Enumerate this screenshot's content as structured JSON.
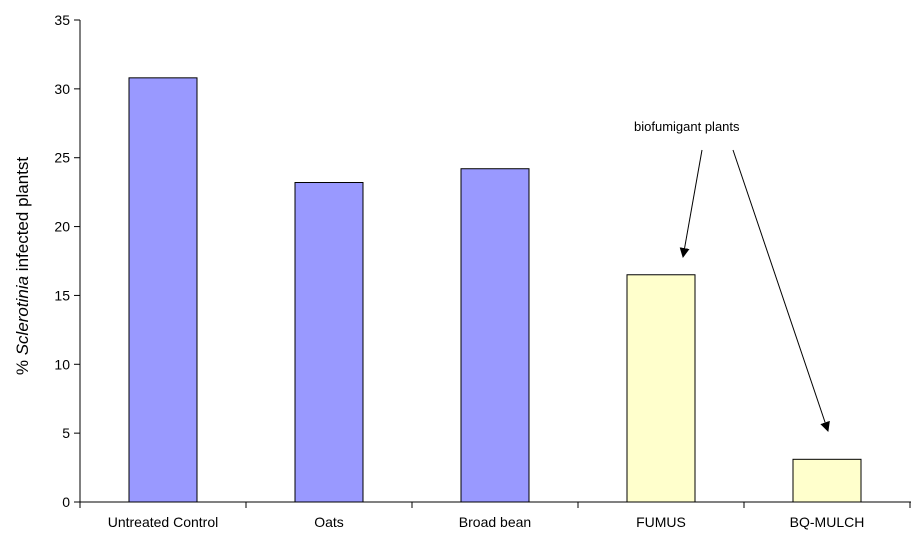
{
  "chart_data": {
    "type": "bar",
    "title": "",
    "xlabel": "",
    "ylabel": {
      "prefix": "% ",
      "italic": "Sclerotinia",
      "suffix": " infected plantst"
    },
    "categories": [
      "Untreated Control",
      "Oats",
      "Broad bean",
      "FUMUS",
      "BQ-MULCH"
    ],
    "values": [
      30.8,
      23.2,
      24.2,
      16.5,
      3.1
    ],
    "bar_colors": [
      "#9999ff",
      "#9999ff",
      "#9999ff",
      "#ffffcc",
      "#ffffcc"
    ],
    "ylim": [
      0,
      35
    ],
    "yticks": [
      0,
      5,
      10,
      15,
      20,
      25,
      30,
      35
    ],
    "grid": false,
    "annotation": {
      "text": "biofumigant plants",
      "targets": [
        "FUMUS",
        "BQ-MULCH"
      ]
    }
  }
}
